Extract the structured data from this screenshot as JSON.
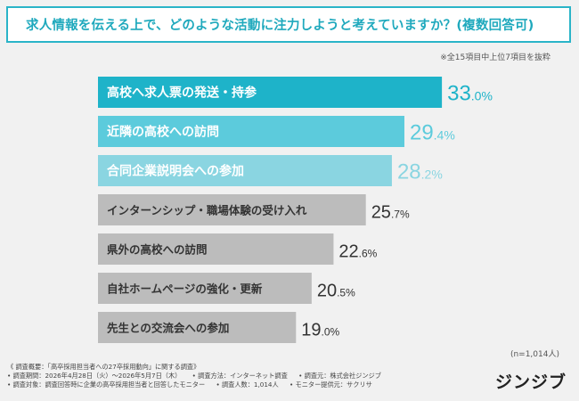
{
  "header": {
    "title": "求人情報を伝える上で、どのような活動に注力しようと考えていますか？(複数回答可)"
  },
  "note_top": "※全15項目中上位7項目を抜粋",
  "n_note": "(n=1,014人)",
  "footer": {
    "line1": "《 調査概要：「高卒採用担当者への27卒採用動向」に関する調査》",
    "line2a": "• 調査期間：2026年4月28日（火）～2026年5月7日（木）",
    "line2b": "• 調査方法：インターネット調査",
    "line2c": "• 調査元：株式会社ジンジブ",
    "line3a": "• 調査対象：調査回答時に企業の高卒採用担当者と回答したモニター",
    "line3b": "• 調査人数：1,014人",
    "line3c": "• モニター提供元：サクリサ"
  },
  "logo": "ジンジブ",
  "colors": {
    "accent": "#2ab4c8",
    "bar_rank1": "#1eb3c9",
    "bar_rank2": "#5ccbdc",
    "bar_rank3": "#8ad5e1",
    "bar_other": "#bcbcbc"
  },
  "chart_data": {
    "type": "bar",
    "orientation": "horizontal",
    "categories": [
      "高校へ求人票の発送・持参",
      "近隣の高校への訪問",
      "合同企業説明会への参加",
      "インターンシップ・職場体験の受け入れ",
      "県外の高校への訪問",
      "自社ホームページの強化・更新",
      "先生との交流会への参加"
    ],
    "values": [
      33.0,
      29.4,
      28.2,
      25.7,
      22.6,
      20.5,
      19.0
    ],
    "value_labels": [
      "33.0",
      "29.4",
      "28.2",
      "25.7",
      "22.6",
      "20.5",
      "19.0"
    ],
    "unit": "%",
    "xlim": [
      0,
      36
    ],
    "grid": false,
    "legend": "none"
  }
}
